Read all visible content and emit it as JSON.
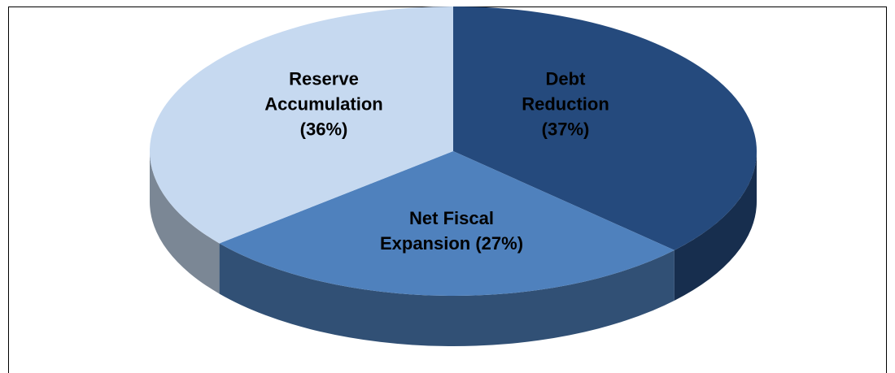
{
  "chart_data": {
    "type": "pie",
    "categories": [
      "Debt Reduction",
      "Net Fiscal Expansion",
      "Reserve Accumulation"
    ],
    "values": [
      37,
      27,
      36
    ],
    "value_labels": [
      "(37%)",
      "(27%)",
      "(36%)"
    ],
    "colors": [
      "#254a7d",
      "#4f81bd",
      "#c6d9f0"
    ]
  }
}
